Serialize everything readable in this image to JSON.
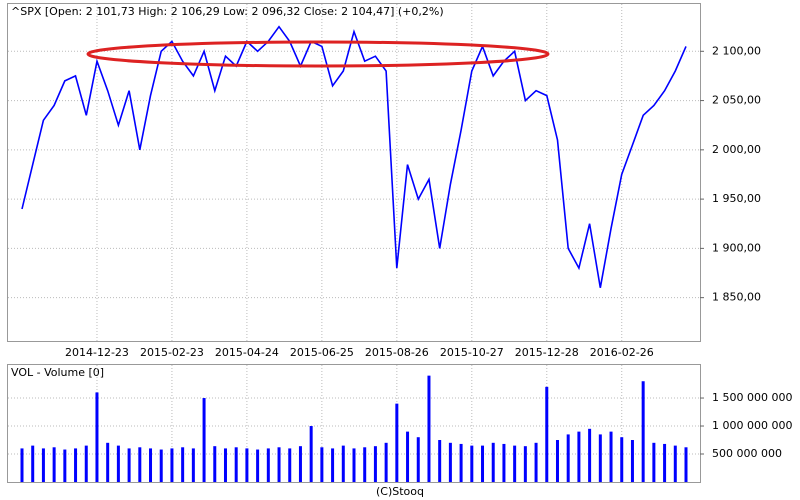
{
  "chart_data": [
    {
      "type": "line",
      "title": "^SPX [Open: 2 101,73  High: 2 106,29  Low: 2 096,32  Close: 2 104,47]  (+0,2%)",
      "color": "#0000ff",
      "categories": [
        null,
        null,
        null,
        null,
        null,
        null,
        null,
        "2014-12-23",
        null,
        null,
        null,
        null,
        null,
        null,
        "2015-02-23",
        null,
        null,
        null,
        null,
        null,
        null,
        "2015-04-24",
        null,
        null,
        null,
        null,
        null,
        null,
        "2015-06-25",
        null,
        null,
        null,
        null,
        null,
        null,
        "2015-08-26",
        null,
        null,
        null,
        null,
        null,
        null,
        "2015-10-27",
        null,
        null,
        null,
        null,
        null,
        null,
        "2015-12-28",
        null,
        null,
        null,
        null,
        null,
        null,
        "2016-02-26",
        null,
        null,
        null,
        null,
        null,
        null
      ],
      "values": [
        1940,
        1985,
        2030,
        2045,
        2070,
        2075,
        2035,
        2090,
        2060,
        2025,
        2060,
        2000,
        2055,
        2100,
        2110,
        2090,
        2075,
        2100,
        2060,
        2095,
        2085,
        2110,
        2100,
        2110,
        2125,
        2110,
        2085,
        2110,
        2105,
        2065,
        2080,
        2120,
        2090,
        2095,
        2080,
        1880,
        1985,
        1950,
        1970,
        1900,
        1965,
        2020,
        2080,
        2105,
        2075,
        2090,
        2100,
        2050,
        2060,
        2055,
        2010,
        1900,
        1880,
        1925,
        1860,
        1920,
        1975,
        2005,
        2035,
        2045,
        2060,
        2080,
        2105
      ],
      "ylim": [
        1806,
        2148
      ],
      "yticks": [
        {
          "value": 1850,
          "label": "1 850,00"
        },
        {
          "value": 1900,
          "label": "1 900,00"
        },
        {
          "value": 1950,
          "label": "1 950,00"
        },
        {
          "value": 2000,
          "label": "2 000,00"
        },
        {
          "value": 2050,
          "label": "2 050,00"
        },
        {
          "value": 2100,
          "label": "2 100,00"
        }
      ],
      "grid": true
    },
    {
      "type": "bar",
      "title": "VOL - Volume [0]",
      "color": "#0000ff",
      "values": [
        600000000,
        650000000,
        600000000,
        620000000,
        580000000,
        600000000,
        650000000,
        1600000000,
        700000000,
        650000000,
        600000000,
        620000000,
        600000000,
        580000000,
        600000000,
        620000000,
        600000000,
        1500000000,
        640000000,
        600000000,
        620000000,
        600000000,
        580000000,
        600000000,
        620000000,
        600000000,
        640000000,
        1000000000,
        620000000,
        600000000,
        650000000,
        600000000,
        620000000,
        640000000,
        700000000,
        1400000000,
        900000000,
        800000000,
        1900000000,
        750000000,
        700000000,
        680000000,
        650000000,
        650000000,
        700000000,
        680000000,
        650000000,
        640000000,
        700000000,
        1700000000,
        750000000,
        850000000,
        900000000,
        950000000,
        850000000,
        900000000,
        800000000,
        750000000,
        1800000000,
        700000000,
        680000000,
        650000000,
        620000000
      ],
      "ylim": [
        0,
        2090000000
      ],
      "yticks": [
        {
          "value": 500000000,
          "label": "500 000 000"
        },
        {
          "value": 1000000000,
          "label": "1 000 000 000"
        },
        {
          "value": 1500000000,
          "label": "1 500 000 000"
        }
      ],
      "grid": true
    }
  ],
  "footer": "(C)Stooq"
}
